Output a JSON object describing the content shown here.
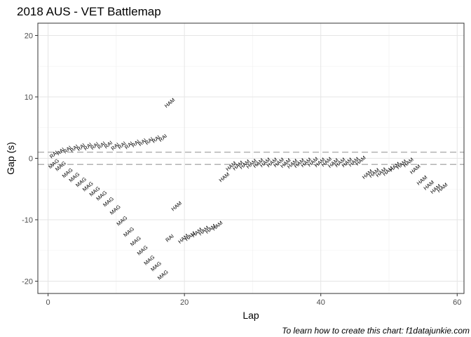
{
  "chart_data": {
    "type": "scatter",
    "title": "2018 AUS - VET Battlemap",
    "xlabel": "Lap",
    "ylabel": "Gap (s)",
    "caption": "To learn how to create this chart: f1datajunkie.com",
    "xlim": [
      -1.5,
      61
    ],
    "ylim": [
      -22,
      22
    ],
    "xticks": [
      0,
      20,
      40,
      60
    ],
    "yticks": [
      -20,
      -10,
      0,
      10,
      20
    ],
    "reference_lines": [
      1,
      -1
    ],
    "grid": true,
    "label_style": "rotated text labels at each lap",
    "series": [
      {
        "name": "RAI",
        "points": [
          {
            "x": 1,
            "y": 0.4
          },
          {
            "x": 2,
            "y": 0.9
          },
          {
            "x": 3,
            "y": 1.2
          },
          {
            "x": 4,
            "y": 1.4
          },
          {
            "x": 5,
            "y": 1.6
          },
          {
            "x": 6,
            "y": 1.7
          },
          {
            "x": 7,
            "y": 1.8
          },
          {
            "x": 8,
            "y": 1.9
          },
          {
            "x": 9,
            "y": 2.0
          },
          {
            "x": 10,
            "y": 1.7
          },
          {
            "x": 11,
            "y": 1.9
          },
          {
            "x": 12,
            "y": 1.9
          },
          {
            "x": 13,
            "y": 2.2
          },
          {
            "x": 14,
            "y": 2.4
          },
          {
            "x": 15,
            "y": 2.6
          },
          {
            "x": 16,
            "y": 2.9
          },
          {
            "x": 17,
            "y": 3.1
          },
          {
            "x": 18,
            "y": -13.2
          }
        ]
      },
      {
        "name": "MAG",
        "points": [
          {
            "x": 1,
            "y": -1.1
          },
          {
            "x": 2,
            "y": -1.5
          },
          {
            "x": 3,
            "y": -2.6
          },
          {
            "x": 4,
            "y": -3.3
          },
          {
            "x": 5,
            "y": -4.1
          },
          {
            "x": 6,
            "y": -4.8
          },
          {
            "x": 7,
            "y": -5.6
          },
          {
            "x": 8,
            "y": -6.3
          },
          {
            "x": 9,
            "y": -7.3
          },
          {
            "x": 10,
            "y": -8.6
          },
          {
            "x": 11,
            "y": -10.4
          },
          {
            "x": 12,
            "y": -12.2
          },
          {
            "x": 13,
            "y": -13.7
          },
          {
            "x": 14,
            "y": -15.2
          },
          {
            "x": 15,
            "y": -16.8
          },
          {
            "x": 16,
            "y": -17.8
          },
          {
            "x": 17,
            "y": -19.2
          }
        ]
      },
      {
        "name": "HAM",
        "points": [
          {
            "x": 18,
            "y": 8.8
          },
          {
            "x": 19,
            "y": -8.0
          },
          {
            "x": 20,
            "y": -13.3
          },
          {
            "x": 21,
            "y": -12.9
          },
          {
            "x": 22,
            "y": -12.3
          },
          {
            "x": 23,
            "y": -12.0
          },
          {
            "x": 24,
            "y": -11.7
          },
          {
            "x": 25,
            "y": -11.2
          },
          {
            "x": 26,
            "y": -3.3
          },
          {
            "x": 27,
            "y": -1.5
          },
          {
            "x": 28,
            "y": -1.4
          },
          {
            "x": 29,
            "y": -1.2
          },
          {
            "x": 30,
            "y": -1.1
          },
          {
            "x": 31,
            "y": -1.0
          },
          {
            "x": 32,
            "y": -0.9
          },
          {
            "x": 33,
            "y": -0.9
          },
          {
            "x": 34,
            "y": -0.9
          },
          {
            "x": 35,
            "y": -1.0
          },
          {
            "x": 36,
            "y": -1.1
          },
          {
            "x": 37,
            "y": -1.0
          },
          {
            "x": 38,
            "y": -0.9
          },
          {
            "x": 39,
            "y": -0.8
          },
          {
            "x": 40,
            "y": -0.9
          },
          {
            "x": 41,
            "y": -0.8
          },
          {
            "x": 42,
            "y": -1.0
          },
          {
            "x": 43,
            "y": -0.9
          },
          {
            "x": 44,
            "y": -0.9
          },
          {
            "x": 45,
            "y": -0.8
          },
          {
            "x": 46,
            "y": -0.6
          },
          {
            "x": 47,
            "y": -2.8
          },
          {
            "x": 48,
            "y": -2.6
          },
          {
            "x": 49,
            "y": -2.5
          },
          {
            "x": 50,
            "y": -2.3
          },
          {
            "x": 51,
            "y": -1.6
          },
          {
            "x": 52,
            "y": -1.2
          },
          {
            "x": 53,
            "y": -0.9
          },
          {
            "x": 54,
            "y": -2.0
          },
          {
            "x": 55,
            "y": -3.8
          },
          {
            "x": 56,
            "y": -4.6
          },
          {
            "x": 57,
            "y": -5.2
          },
          {
            "x": 58,
            "y": -5.0
          }
        ]
      }
    ]
  }
}
